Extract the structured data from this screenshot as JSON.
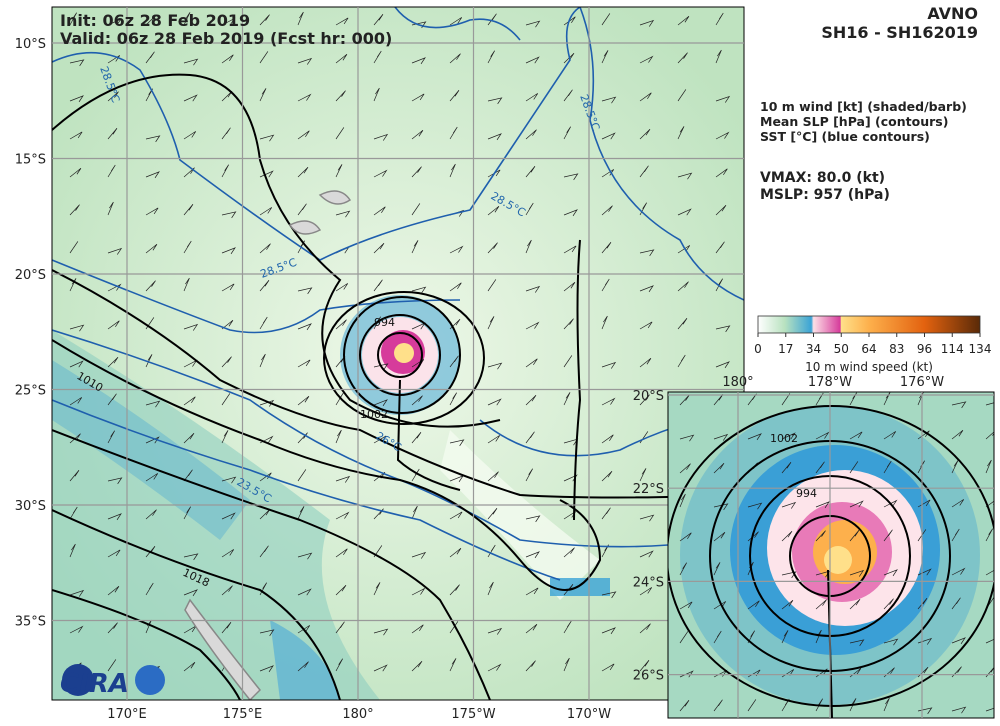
{
  "header": {
    "init": "Init:  06z 28 Feb 2019",
    "valid": "Valid: 06z 28 Feb 2019 (Fcst hr: 000)",
    "model": "AVNO",
    "storm": "SH16 - SH162019"
  },
  "legend": [
    "10 m wind [kt] (shaded/barb)",
    "Mean SLP [hPa] (contours)",
    "SST [°C] (blue contours)"
  ],
  "stats": {
    "vmax": "VMAX:  80.0 (kt)",
    "mslp": "MSLP:  957 (hPa)"
  },
  "colorbar": {
    "ticks": [
      0,
      17,
      34,
      50,
      64,
      83,
      96,
      114,
      134
    ],
    "label": "10 m wind speed (kt)"
  },
  "map": {
    "lon_ticks": [
      {
        "value": 170,
        "label": "170°E"
      },
      {
        "value": 175,
        "label": "175°E"
      },
      {
        "value": 180,
        "label": "180°"
      },
      {
        "value": 185,
        "label": "175°W"
      },
      {
        "value": 190,
        "label": "170°W"
      }
    ],
    "lat_ticks": [
      {
        "value": -10,
        "label": "10°S"
      },
      {
        "value": -15,
        "label": "15°S"
      },
      {
        "value": -20,
        "label": "20°S"
      },
      {
        "value": -25,
        "label": "25°S"
      },
      {
        "value": -30,
        "label": "30°S"
      },
      {
        "value": -35,
        "label": "35°S"
      }
    ],
    "contour_labels": [
      "994",
      "1002",
      "1010",
      "1018"
    ],
    "sst_labels": [
      "28.5°C",
      "28.5°C",
      "28.5°C",
      "28.5°C",
      "26°C",
      "23.5°C"
    ]
  },
  "inset": {
    "lon_ticks": [
      {
        "value": 180,
        "label": "180°"
      },
      {
        "value": 182,
        "label": "178°W"
      },
      {
        "value": 184,
        "label": "176°W"
      }
    ],
    "lat_ticks": [
      {
        "value": -20,
        "label": "20°S"
      },
      {
        "value": -22,
        "label": "22°S"
      },
      {
        "value": -24,
        "label": "24°S"
      },
      {
        "value": -26,
        "label": "26°S"
      }
    ],
    "contour_labels": [
      "1002",
      "994"
    ]
  },
  "logo": "CIRA"
}
